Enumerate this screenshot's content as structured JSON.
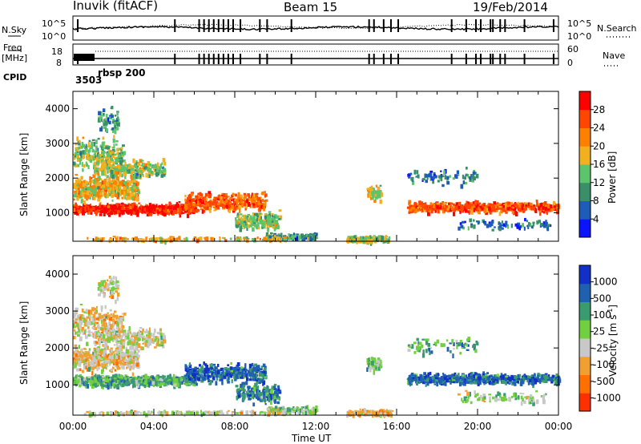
{
  "header": {
    "station": "Inuvik (fitACF)",
    "beam": "Beam 15",
    "date": "19/Feb/2014"
  },
  "left_labels": {
    "nsky": "N.Sky",
    "freq": "Freq",
    "freq_unit": "[MHz]",
    "cpid": "CPID"
  },
  "right_labels": {
    "nsearch": "N.Search",
    "nave": "Nave"
  },
  "mini_axes": {
    "noise_top": "10^5",
    "noise_bottom": "10^0",
    "noise_right_top": "10^5",
    "noise_right_bottom": "10^0",
    "freq_top": "18",
    "freq_bottom": "8",
    "nave_top": "60",
    "nave_bottom": "0"
  },
  "cpid_values": {
    "first": "3503",
    "second": "rbsp 200"
  },
  "colors": {
    "power_scale": [
      "#0a14ff",
      "#1f5bb8",
      "#3a8f6a",
      "#5cc46a",
      "#f0b020",
      "#ff8000",
      "#ff4500",
      "#ff0000"
    ],
    "velocity_scale": [
      "#1030c8",
      "#2060b0",
      "#3a9a70",
      "#70d040",
      "#c8c8c8",
      "#f0a030",
      "#ff7000",
      "#ff3000",
      "#ff0000"
    ]
  },
  "chart_data": [
    {
      "type": "heatmap",
      "title": "",
      "xlabel": "",
      "ylabel": "Slant Range [km]",
      "x_range_hours": [
        0,
        24
      ],
      "y_range_km": [
        180,
        4500
      ],
      "y_ticks": [
        "1000",
        "2000",
        "3000",
        "4000"
      ],
      "colorbar_label": "Power [dB]",
      "colorbar_ticks": [
        "4",
        "8",
        "12",
        "16",
        "20",
        "24",
        "28"
      ],
      "colorbar_range": [
        0,
        32
      ]
    },
    {
      "type": "heatmap",
      "title": "",
      "xlabel": "Time UT",
      "ylabel": "Slant Range [km]",
      "x_range_hours": [
        0,
        24
      ],
      "x_ticks": [
        "00:00",
        "04:00",
        "08:00",
        "12:00",
        "16:00",
        "20:00",
        "00:00"
      ],
      "y_range_km": [
        180,
        4500
      ],
      "y_ticks": [
        "1000",
        "2000",
        "3000",
        "4000"
      ],
      "colorbar_label": "Velocity [m s^-1]",
      "colorbar_ticks": [
        "1000",
        "500",
        "100",
        "25",
        "-25",
        "-100",
        "-500",
        "-1000"
      ]
    }
  ]
}
